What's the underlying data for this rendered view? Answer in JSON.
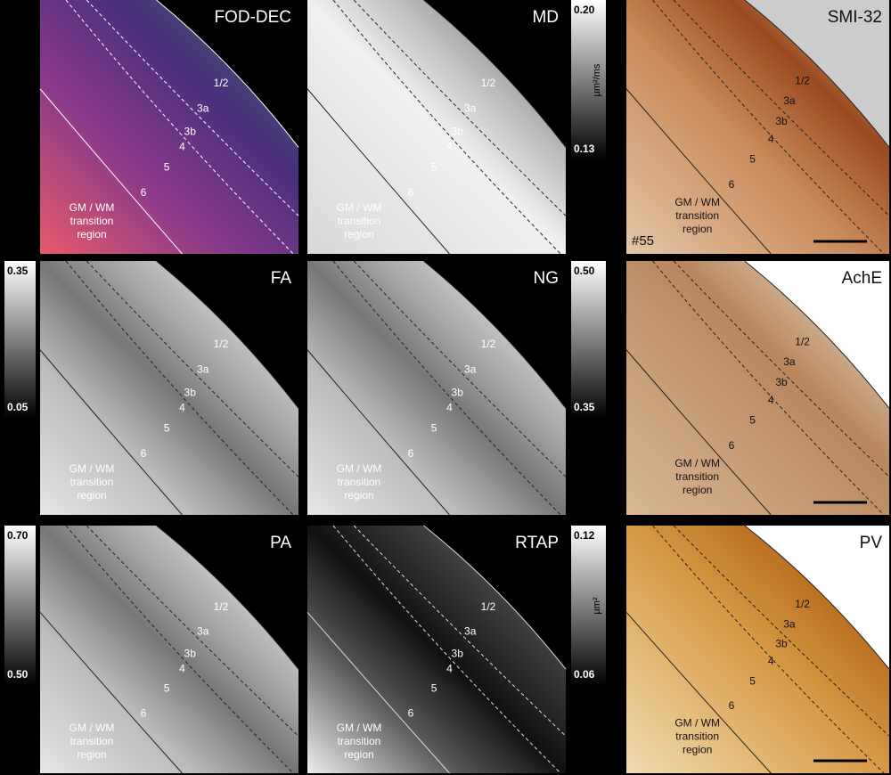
{
  "panels": [
    {
      "title": "FOD-DEC",
      "layers": [
        "1/2",
        "3a",
        "3b",
        "4",
        "5",
        "6"
      ],
      "region": [
        "GM / WM",
        "transition",
        "region"
      ]
    },
    {
      "title": "MD",
      "layers": [
        "1/2",
        "3a",
        "3b",
        "4",
        "5",
        "6"
      ],
      "region": [
        "GM / WM",
        "transition",
        "region"
      ],
      "colorbar": {
        "top": "0.20",
        "bottom": "0.13",
        "unit": "µm²/ms"
      }
    },
    {
      "title": "SMI-32",
      "layers": [
        "1/2",
        "3a",
        "3b",
        "4",
        "5",
        "6"
      ],
      "region": [
        "GM / WM",
        "transition",
        "region"
      ],
      "case": "#55"
    },
    {
      "title": "FA",
      "layers": [
        "1/2",
        "3a",
        "3b",
        "4",
        "5",
        "6"
      ],
      "region": [
        "GM / WM",
        "transition",
        "region"
      ],
      "colorbar": {
        "top": "0.35",
        "bottom": "0.05"
      }
    },
    {
      "title": "NG",
      "layers": [
        "1/2",
        "3a",
        "3b",
        "4",
        "5",
        "6"
      ],
      "region": [
        "GM / WM",
        "transition",
        "region"
      ],
      "colorbar": {
        "top": "0.50",
        "bottom": "0.35"
      }
    },
    {
      "title": "AchE",
      "layers": [
        "1/2",
        "3a",
        "3b",
        "4",
        "5",
        "6"
      ],
      "region": [
        "GM / WM",
        "transition",
        "region"
      ]
    },
    {
      "title": "PA",
      "layers": [
        "1/2",
        "3a",
        "3b",
        "4",
        "5",
        "6"
      ],
      "region": [
        "GM / WM",
        "transition",
        "region"
      ],
      "colorbar": {
        "top": "0.70",
        "bottom": "0.50"
      }
    },
    {
      "title": "RTAP",
      "layers": [
        "1/2",
        "3a",
        "3b",
        "4",
        "5",
        "6"
      ],
      "region": [
        "GM / WM",
        "transition",
        "region"
      ],
      "colorbar": {
        "top": "0.12",
        "bottom": "0.06",
        "unit": "µm²"
      }
    },
    {
      "title": "PV",
      "layers": [
        "1/2",
        "3a",
        "3b",
        "4",
        "5",
        "6"
      ],
      "region": [
        "GM / WM",
        "transition",
        "region"
      ]
    }
  ]
}
